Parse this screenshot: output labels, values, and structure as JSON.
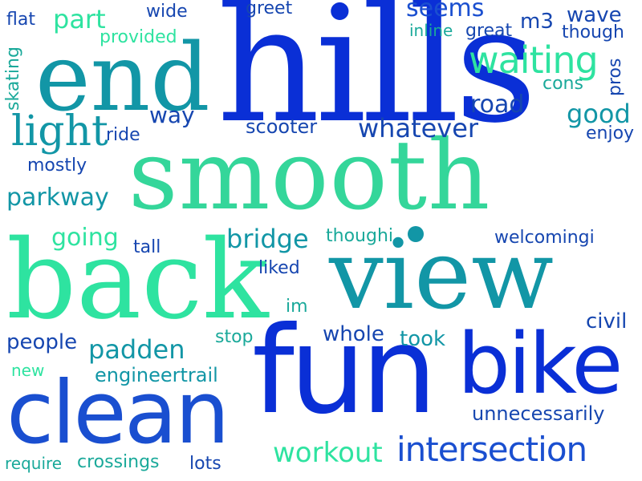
{
  "colors": {
    "blue": "#0a2fd6",
    "royal": "#1a4fd0",
    "navy": "#1646b0",
    "teal": "#1296a6",
    "seagreen": "#1aa99a",
    "mint": "#2ee3a0",
    "lime": "#34d69a"
  },
  "words": [
    {
      "text": "hills",
      "color": "blue"
    },
    {
      "text": "end",
      "color": "teal"
    },
    {
      "text": "smooth",
      "color": "lime"
    },
    {
      "text": "back",
      "color": "mint"
    },
    {
      "text": "view",
      "color": "teal"
    },
    {
      "text": "fun",
      "color": "blue"
    },
    {
      "text": "bike",
      "color": "blue"
    },
    {
      "text": "clean",
      "color": "royal"
    },
    {
      "text": "waiting",
      "color": "mint"
    },
    {
      "text": "light",
      "color": "teal"
    },
    {
      "text": "intersection",
      "color": "royal"
    },
    {
      "text": "workout",
      "color": "mint"
    },
    {
      "text": "parkway",
      "color": "teal"
    },
    {
      "text": "padden",
      "color": "teal"
    },
    {
      "text": "bridge",
      "color": "teal"
    },
    {
      "text": "whatever",
      "color": "navy"
    },
    {
      "text": "good",
      "color": "teal"
    },
    {
      "text": "way",
      "color": "navy"
    },
    {
      "text": "part",
      "color": "mint"
    },
    {
      "text": "seems",
      "color": "royal"
    },
    {
      "text": "wave",
      "color": "navy"
    },
    {
      "text": "road",
      "color": "navy"
    },
    {
      "text": "going",
      "color": "mint"
    },
    {
      "text": "engineertrail",
      "color": "teal"
    },
    {
      "text": "people",
      "color": "navy"
    },
    {
      "text": "whole",
      "color": "navy"
    },
    {
      "text": "took",
      "color": "teal"
    },
    {
      "text": "civil",
      "color": "navy"
    },
    {
      "text": "unnecessarily",
      "color": "navy"
    },
    {
      "text": "scooter",
      "color": "navy"
    },
    {
      "text": "though",
      "color": "navy"
    },
    {
      "text": "greet",
      "color": "navy"
    },
    {
      "text": "great",
      "color": "navy"
    },
    {
      "text": "inline",
      "color": "seagreen"
    },
    {
      "text": "m3",
      "color": "navy"
    },
    {
      "text": "wide",
      "color": "navy"
    },
    {
      "text": "flat",
      "color": "navy"
    },
    {
      "text": "provided",
      "color": "mint"
    },
    {
      "text": "cons",
      "color": "seagreen"
    },
    {
      "text": "pros",
      "color": "navy"
    },
    {
      "text": "skating",
      "color": "seagreen"
    },
    {
      "text": "ride",
      "color": "navy"
    },
    {
      "text": "mostly",
      "color": "navy"
    },
    {
      "text": "enjoy",
      "color": "navy"
    },
    {
      "text": "tall",
      "color": "navy"
    },
    {
      "text": "thoughi",
      "color": "seagreen"
    },
    {
      "text": "welcomingi",
      "color": "navy"
    },
    {
      "text": "liked",
      "color": "navy"
    },
    {
      "text": "im",
      "color": "seagreen"
    },
    {
      "text": "stop",
      "color": "seagreen"
    },
    {
      "text": "new",
      "color": "mint"
    },
    {
      "text": "require",
      "color": "seagreen"
    },
    {
      "text": "crossings",
      "color": "seagreen"
    },
    {
      "text": "lots",
      "color": "navy"
    }
  ]
}
